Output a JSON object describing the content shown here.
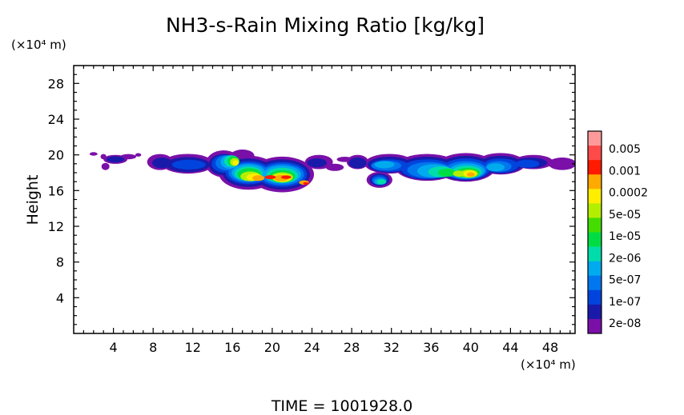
{
  "chart_data": {
    "type": "heatmap",
    "title": "NH3-s-Rain Mixing Ratio [kg/kg]",
    "ylabel": "Height",
    "y_unit": "(×10⁴ m)",
    "x_unit": "(×10⁴ m)",
    "footer": "TIME  =  1001928.0",
    "xlim": [
      0,
      50.5
    ],
    "ylim": [
      0,
      30
    ],
    "x_ticks": [
      4,
      8,
      12,
      16,
      20,
      24,
      28,
      32,
      36,
      40,
      44,
      48
    ],
    "y_ticks": [
      4,
      8,
      12,
      16,
      20,
      24,
      28
    ],
    "colorbar": {
      "labels": [
        "0.005",
        "0.001",
        "0.0002",
        "5e-05",
        "1e-05",
        "2e-06",
        "5e-07",
        "1e-07",
        "2e-08"
      ],
      "colors": [
        "#ff9a9a",
        "#ff4a4a",
        "#ff1a00",
        "#ffaa00",
        "#ffee00",
        "#b4ee00",
        "#44dd00",
        "#00dd44",
        "#00ddaa",
        "#00aaee",
        "#0077ee",
        "#0044dd",
        "#1a1aaa",
        "#7a10a8"
      ]
    },
    "layers": [
      {
        "level": 0,
        "color": "#7a10a8",
        "blobs": [
          [
            2,
            20.1,
            0.4,
            0.2
          ],
          [
            3,
            19.8,
            0.3,
            0.3
          ],
          [
            4.2,
            19.5,
            1.2,
            0.5
          ],
          [
            3.2,
            18.7,
            0.4,
            0.4
          ],
          [
            5.5,
            19.8,
            0.8,
            0.3
          ],
          [
            6.5,
            20.0,
            0.3,
            0.2
          ],
          [
            8.7,
            19.2,
            1.3,
            0.9
          ],
          [
            11.5,
            19.0,
            2.6,
            1.1
          ],
          [
            15.1,
            19.0,
            1.8,
            1.5
          ],
          [
            17.0,
            19.9,
            1.2,
            0.7
          ],
          [
            17.6,
            18.0,
            3.0,
            1.9
          ],
          [
            21.0,
            17.8,
            3.2,
            2.0
          ],
          [
            24.7,
            19.2,
            1.4,
            0.8
          ],
          [
            26.3,
            18.6,
            0.9,
            0.4
          ],
          [
            27.3,
            19.5,
            0.8,
            0.3
          ],
          [
            28.6,
            19.2,
            1.1,
            0.8
          ],
          [
            31.8,
            19.0,
            2.5,
            1.1
          ],
          [
            30.8,
            17.2,
            1.3,
            0.9
          ],
          [
            35.6,
            18.6,
            3.2,
            1.5
          ],
          [
            39.5,
            18.6,
            3.0,
            1.6
          ],
          [
            43.0,
            19.0,
            2.5,
            1.2
          ],
          [
            46.3,
            19.2,
            2.0,
            0.8
          ],
          [
            49.2,
            19.0,
            1.4,
            0.7
          ]
        ]
      },
      {
        "level": 1,
        "color": "#1a1aaa",
        "blobs": [
          [
            4.2,
            19.5,
            0.9,
            0.35
          ],
          [
            8.9,
            19.1,
            1.0,
            0.6
          ],
          [
            11.5,
            18.9,
            2.2,
            0.85
          ],
          [
            15.1,
            18.9,
            1.5,
            1.2
          ],
          [
            17.6,
            18.0,
            2.6,
            1.6
          ],
          [
            21.0,
            17.8,
            2.8,
            1.7
          ],
          [
            24.5,
            19.1,
            1.0,
            0.5
          ],
          [
            28.6,
            19.1,
            0.9,
            0.6
          ],
          [
            31.8,
            18.9,
            2.2,
            0.9
          ],
          [
            30.8,
            17.2,
            1.0,
            0.7
          ],
          [
            35.6,
            18.5,
            2.9,
            1.3
          ],
          [
            39.5,
            18.5,
            2.7,
            1.4
          ],
          [
            43.0,
            18.9,
            2.2,
            1.0
          ],
          [
            46.0,
            19.1,
            1.7,
            0.6
          ]
        ]
      },
      {
        "level": 2,
        "color": "#0044dd",
        "blobs": [
          [
            11.6,
            18.9,
            1.7,
            0.55
          ],
          [
            15.2,
            19.0,
            1.3,
            1.0
          ],
          [
            17.6,
            18.0,
            2.3,
            1.3
          ],
          [
            21.0,
            17.8,
            2.5,
            1.4
          ],
          [
            31.8,
            18.8,
            1.9,
            0.7
          ],
          [
            30.8,
            17.2,
            0.8,
            0.55
          ],
          [
            35.6,
            18.4,
            2.6,
            1.1
          ],
          [
            39.5,
            18.4,
            2.4,
            1.2
          ],
          [
            43.0,
            18.8,
            1.8,
            0.8
          ],
          [
            45.7,
            19.0,
            1.2,
            0.45
          ]
        ]
      },
      {
        "level": 3,
        "color": "#0077ee",
        "blobs": [
          [
            15.4,
            19.1,
            1.1,
            0.85
          ],
          [
            17.6,
            18.0,
            2.0,
            1.1
          ],
          [
            21.0,
            17.8,
            2.2,
            1.2
          ],
          [
            31.5,
            18.8,
            1.5,
            0.55
          ],
          [
            30.8,
            17.1,
            0.7,
            0.45
          ],
          [
            35.8,
            18.3,
            2.2,
            0.9
          ],
          [
            39.5,
            18.3,
            2.1,
            1.0
          ],
          [
            42.8,
            18.7,
            1.3,
            0.6
          ]
        ]
      },
      {
        "level": 4,
        "color": "#00aaee",
        "blobs": [
          [
            15.7,
            19.2,
            0.9,
            0.75
          ],
          [
            17.6,
            18.0,
            1.7,
            0.95
          ],
          [
            21.0,
            17.8,
            1.9,
            1.0
          ],
          [
            31.3,
            18.9,
            1.0,
            0.4
          ],
          [
            30.9,
            17.0,
            0.6,
            0.35
          ],
          [
            36.3,
            18.2,
            1.7,
            0.75
          ],
          [
            39.6,
            18.2,
            1.8,
            0.85
          ],
          [
            42.5,
            18.6,
            0.9,
            0.45
          ]
        ]
      },
      {
        "level": 5,
        "color": "#00ddaa",
        "blobs": [
          [
            15.9,
            19.3,
            0.75,
            0.65
          ],
          [
            17.6,
            17.9,
            1.4,
            0.8
          ],
          [
            21.0,
            17.7,
            1.6,
            0.85
          ],
          [
            31.0,
            17.0,
            0.45,
            0.28
          ],
          [
            37.0,
            18.1,
            1.3,
            0.6
          ],
          [
            39.6,
            18.1,
            1.5,
            0.7
          ]
        ]
      },
      {
        "level": 6,
        "color": "#00dd44",
        "blobs": [
          [
            16.1,
            19.3,
            0.6,
            0.55
          ],
          [
            17.7,
            17.8,
            1.2,
            0.7
          ],
          [
            21.0,
            17.6,
            1.3,
            0.7
          ],
          [
            37.6,
            18.0,
            0.9,
            0.45
          ],
          [
            39.7,
            18.0,
            1.2,
            0.55
          ]
        ]
      },
      {
        "level": 7,
        "color": "#b4ee00",
        "blobs": [
          [
            16.2,
            19.2,
            0.45,
            0.45
          ],
          [
            17.8,
            17.6,
            1.0,
            0.55
          ],
          [
            21.0,
            17.5,
            1.1,
            0.55
          ],
          [
            38.8,
            17.9,
            0.6,
            0.35
          ],
          [
            39.8,
            17.9,
            0.9,
            0.45
          ]
        ]
      },
      {
        "level": 8,
        "color": "#ffee00",
        "blobs": [
          [
            16.3,
            19.1,
            0.3,
            0.3
          ],
          [
            18.2,
            17.5,
            0.8,
            0.4
          ],
          [
            21.0,
            17.4,
            0.9,
            0.45
          ],
          [
            39.9,
            17.9,
            0.65,
            0.35
          ]
        ]
      },
      {
        "level": 9,
        "color": "#ffaa00",
        "blobs": [
          [
            18.6,
            17.4,
            0.6,
            0.32
          ],
          [
            20.9,
            17.4,
            0.75,
            0.35
          ],
          [
            23.2,
            16.9,
            0.5,
            0.25
          ],
          [
            40.0,
            17.8,
            0.4,
            0.25
          ]
        ]
      },
      {
        "level": 10,
        "color": "#ff1a00",
        "blobs": [
          [
            19.8,
            17.5,
            0.55,
            0.22
          ],
          [
            21.4,
            17.5,
            0.5,
            0.2
          ],
          [
            23.4,
            16.8,
            0.3,
            0.15
          ]
        ]
      }
    ]
  }
}
